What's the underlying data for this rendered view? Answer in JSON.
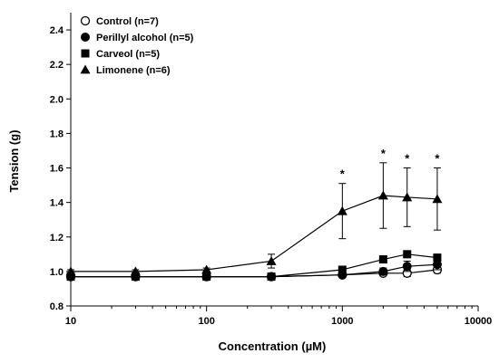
{
  "chart_data": {
    "type": "line",
    "xlabel": "Concentration (µM)",
    "ylabel": "Tension (g)",
    "xscale": "log",
    "xlim": [
      10,
      10000
    ],
    "ylim": [
      0.8,
      2.5
    ],
    "x_ticks": [
      10,
      100,
      1000,
      10000
    ],
    "x_tick_labels": [
      "10",
      "100",
      "1000",
      "10000"
    ],
    "y_ticks": [
      0.8,
      1.0,
      1.2,
      1.4,
      1.6,
      1.8,
      2.0,
      2.2,
      2.4
    ],
    "y_tick_labels": [
      "0.8",
      "1.0",
      "1.2",
      "1.4",
      "1.6",
      "1.8",
      "2.0",
      "2.2",
      "2.4"
    ],
    "legend_position": "top-left",
    "grid": false,
    "series": [
      {
        "name": "Control (n=7)",
        "marker": "open-circle",
        "x": [
          10,
          30,
          100,
          300,
          1000,
          2000,
          3000,
          5000
        ],
        "y": [
          0.97,
          0.97,
          0.97,
          0.97,
          0.98,
          0.99,
          0.99,
          1.01
        ],
        "error": [
          0.01,
          0.01,
          0.01,
          0.01,
          0.01,
          0.01,
          0.02,
          0.02
        ]
      },
      {
        "name": "Perillyl alcohol (n=5)",
        "marker": "filled-circle",
        "x": [
          10,
          30,
          100,
          300,
          1000,
          2000,
          3000,
          5000
        ],
        "y": [
          0.97,
          0.97,
          0.97,
          0.97,
          0.98,
          1.0,
          1.03,
          1.04
        ],
        "error": [
          0.01,
          0.01,
          0.01,
          0.01,
          0.01,
          0.02,
          0.03,
          0.03
        ]
      },
      {
        "name": "Carveol (n=5)",
        "marker": "filled-square",
        "x": [
          10,
          30,
          100,
          300,
          1000,
          2000,
          3000,
          5000
        ],
        "y": [
          0.97,
          0.97,
          0.97,
          0.97,
          1.01,
          1.07,
          1.1,
          1.08
        ],
        "error": [
          0.01,
          0.01,
          0.01,
          0.01,
          0.01,
          0.02,
          0.02,
          0.02
        ]
      },
      {
        "name": "Limonene (n=6)",
        "marker": "filled-triangle",
        "x": [
          10,
          30,
          100,
          300,
          1000,
          2000,
          3000,
          5000
        ],
        "y": [
          1.0,
          1.0,
          1.01,
          1.06,
          1.35,
          1.44,
          1.43,
          1.42
        ],
        "error": [
          0.01,
          0.01,
          0.01,
          0.04,
          0.16,
          0.19,
          0.17,
          0.18
        ]
      }
    ],
    "annotations": [
      {
        "text": "*",
        "x": 1000,
        "y": 1.51
      },
      {
        "text": "*",
        "x": 2000,
        "y": 1.63
      },
      {
        "text": "*",
        "x": 3000,
        "y": 1.6
      },
      {
        "text": "*",
        "x": 5000,
        "y": 1.6
      }
    ]
  }
}
